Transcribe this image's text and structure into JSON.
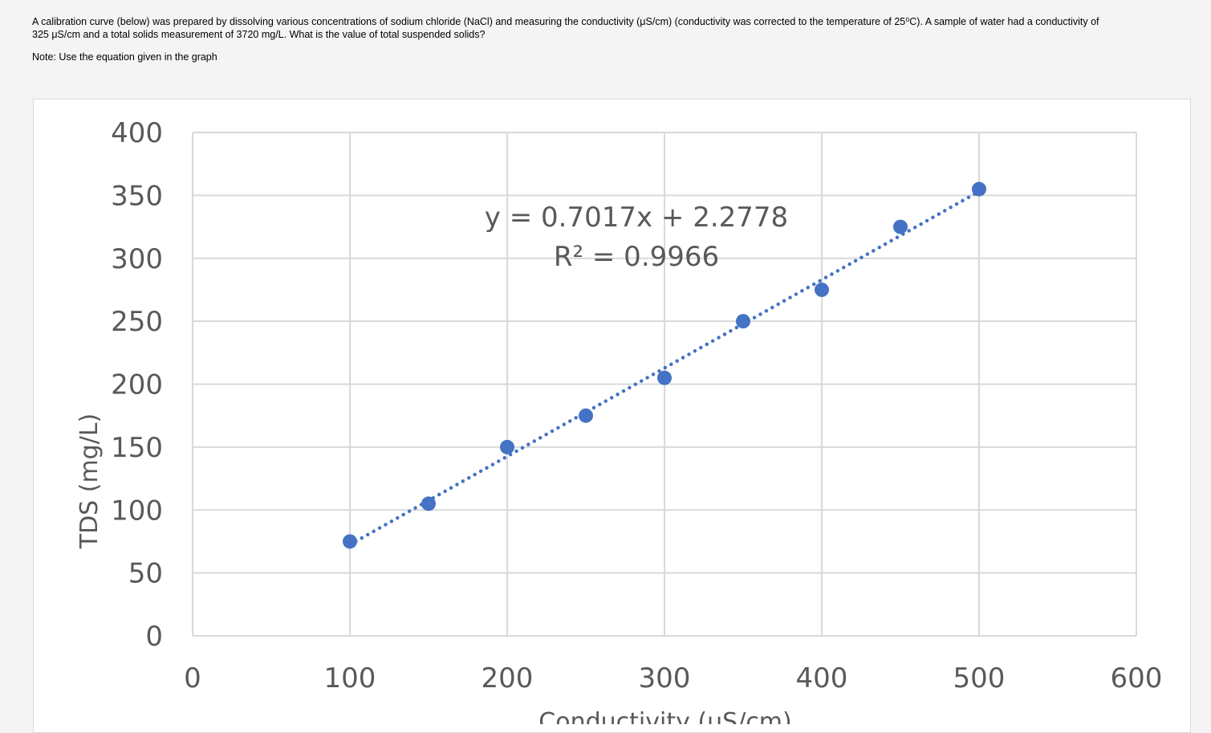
{
  "question": {
    "line1": "A calibration curve (below) was prepared by dissolving various concentrations of sodium chloride (NaCl) and measuring the conductivity (μS/cm) (conductivity was corrected to the temperature of 25⁰C). A sample of water had a conductivity of",
    "line2": "325 μS/cm and a total solids measurement of 3720 mg/L. What is the value of total suspended solids?",
    "note": "Note: Use the equation given in the graph"
  },
  "chart_data": {
    "type": "scatter",
    "xlabel": "Conductivity (μS/cm)",
    "ylabel": "TDS (mg/L)",
    "xlim": [
      0,
      600
    ],
    "ylim": [
      0,
      400
    ],
    "x_ticks": [
      "0",
      "100",
      "200",
      "300",
      "400",
      "500",
      "600"
    ],
    "y_ticks": [
      "0",
      "50",
      "100",
      "150",
      "200",
      "250",
      "300",
      "350",
      "400"
    ],
    "grid": true,
    "series": [
      {
        "x": [
          100,
          150,
          200,
          250,
          300,
          350,
          400,
          450,
          500
        ],
        "y": [
          75,
          105,
          150,
          175,
          205,
          250,
          275,
          325,
          355
        ]
      }
    ],
    "trendline": {
      "slope": 0.7017,
      "intercept": 2.2778,
      "x_range": [
        100,
        500
      ],
      "style": "dotted"
    },
    "equation": "y = 0.7017x + 2.2778",
    "r_squared": "R² = 0.9966",
    "colors": {
      "marker": "#4472c4",
      "grid": "#d9d9d9",
      "text": "#595959"
    }
  }
}
